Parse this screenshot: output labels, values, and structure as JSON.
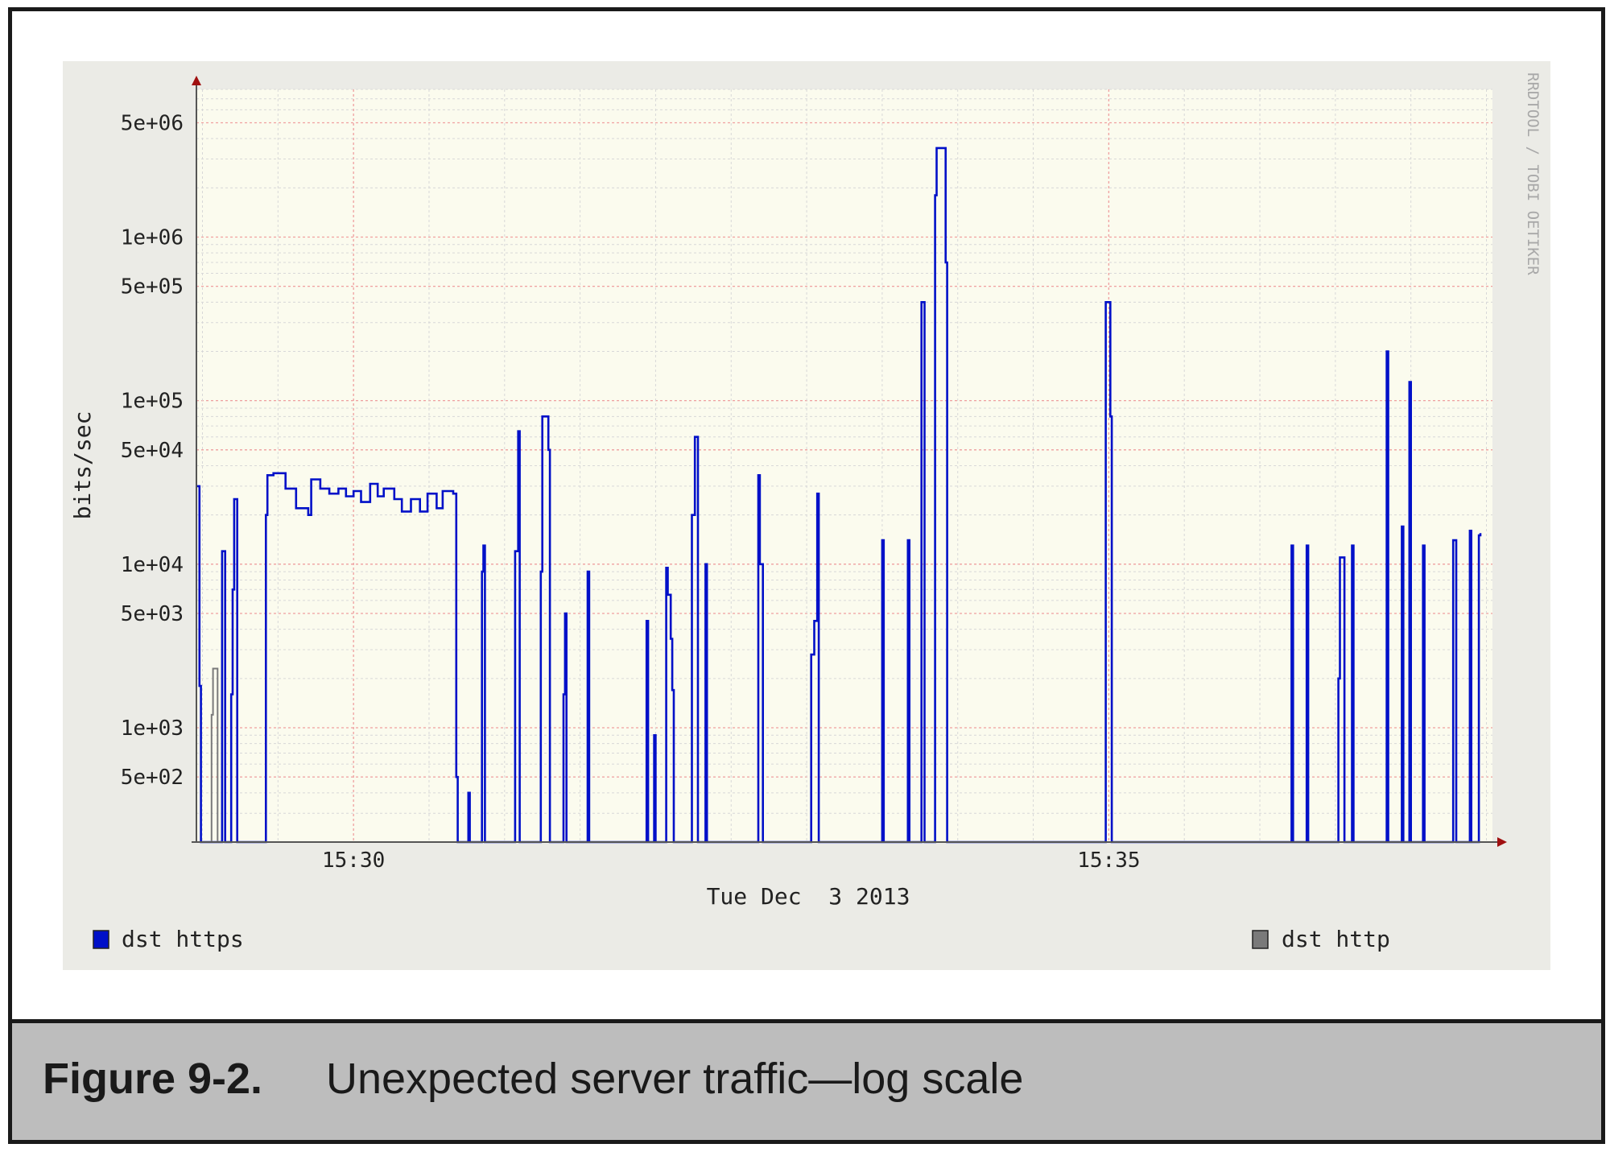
{
  "figure": {
    "label": "Figure 9-2.",
    "caption": "Unexpected server traffic—log scale"
  },
  "chart_data": {
    "type": "line",
    "scale": "log",
    "ylabel": "bits/sec",
    "xlabel": "Tue Dec  3 2013",
    "watermark": "RRDTOOL / TOBI OETIKER",
    "x_unit": "minutes past 15:00",
    "xlim": [
      28.96,
      37.54
    ],
    "ylim": [
      200,
      8000000
    ],
    "y_ticks": [
      {
        "value": 5000000,
        "label": "5e+06"
      },
      {
        "value": 1000000,
        "label": "1e+06"
      },
      {
        "value": 500000,
        "label": "5e+05"
      },
      {
        "value": 100000,
        "label": "1e+05"
      },
      {
        "value": 50000,
        "label": "5e+04"
      },
      {
        "value": 10000,
        "label": "1e+04"
      },
      {
        "value": 5000,
        "label": "5e+03"
      },
      {
        "value": 1000,
        "label": "1e+03"
      },
      {
        "value": 500,
        "label": "5e+02"
      }
    ],
    "x_ticks": [
      {
        "value": 30,
        "label": "15:30"
      },
      {
        "value": 35,
        "label": "15:35"
      }
    ],
    "grid": true,
    "legend_position": "bottom",
    "series": [
      {
        "name": "dst https",
        "color": "#0010c8",
        "points": [
          [
            28.96,
            30000
          ],
          [
            28.98,
            1800
          ],
          [
            28.99,
            200
          ],
          [
            29.12,
            200
          ],
          [
            29.13,
            12000
          ],
          [
            29.15,
            200
          ],
          [
            29.19,
            1600
          ],
          [
            29.2,
            7000
          ],
          [
            29.21,
            25000
          ],
          [
            29.23,
            200
          ],
          [
            29.41,
            200
          ],
          [
            29.42,
            20000
          ],
          [
            29.43,
            35000
          ],
          [
            29.47,
            36000
          ],
          [
            29.55,
            29000
          ],
          [
            29.62,
            22000
          ],
          [
            29.7,
            20000
          ],
          [
            29.72,
            33000
          ],
          [
            29.78,
            29000
          ],
          [
            29.84,
            27000
          ],
          [
            29.9,
            29000
          ],
          [
            29.95,
            26000
          ],
          [
            30.0,
            28000
          ],
          [
            30.05,
            24000
          ],
          [
            30.11,
            31000
          ],
          [
            30.16,
            26000
          ],
          [
            30.2,
            29000
          ],
          [
            30.27,
            25000
          ],
          [
            30.32,
            21000
          ],
          [
            30.38,
            25000
          ],
          [
            30.44,
            21000
          ],
          [
            30.49,
            27000
          ],
          [
            30.55,
            22000
          ],
          [
            30.59,
            28000
          ],
          [
            30.66,
            27000
          ],
          [
            30.68,
            500
          ],
          [
            30.69,
            200
          ],
          [
            30.75,
            200
          ],
          [
            30.76,
            400
          ],
          [
            30.77,
            200
          ],
          [
            30.84,
            200
          ],
          [
            30.85,
            9000
          ],
          [
            30.86,
            13000
          ],
          [
            30.87,
            200
          ],
          [
            31.06,
            200
          ],
          [
            31.07,
            12000
          ],
          [
            31.09,
            65000
          ],
          [
            31.1,
            200
          ],
          [
            31.23,
            200
          ],
          [
            31.24,
            9000
          ],
          [
            31.25,
            80000
          ],
          [
            31.29,
            50000
          ],
          [
            31.3,
            200
          ],
          [
            31.38,
            200
          ],
          [
            31.39,
            1600
          ],
          [
            31.4,
            5000
          ],
          [
            31.41,
            200
          ],
          [
            31.54,
            200
          ],
          [
            31.55,
            9000
          ],
          [
            31.56,
            200
          ],
          [
            31.93,
            200
          ],
          [
            31.94,
            4500
          ],
          [
            31.95,
            200
          ],
          [
            31.98,
            200
          ],
          [
            31.99,
            900
          ],
          [
            32.0,
            200
          ],
          [
            32.06,
            200
          ],
          [
            32.07,
            9500
          ],
          [
            32.08,
            6500
          ],
          [
            32.1,
            3500
          ],
          [
            32.11,
            1700
          ],
          [
            32.12,
            200
          ],
          [
            32.23,
            200
          ],
          [
            32.24,
            20000
          ],
          [
            32.26,
            60000
          ],
          [
            32.28,
            200
          ],
          [
            32.32,
            200
          ],
          [
            32.33,
            10000
          ],
          [
            32.34,
            200
          ],
          [
            32.67,
            200
          ],
          [
            32.68,
            35000
          ],
          [
            32.69,
            10000
          ],
          [
            32.71,
            200
          ],
          [
            33.02,
            200
          ],
          [
            33.03,
            2800
          ],
          [
            33.05,
            4500
          ],
          [
            33.07,
            27000
          ],
          [
            33.08,
            200
          ],
          [
            33.49,
            200
          ],
          [
            33.5,
            14000
          ],
          [
            33.51,
            200
          ],
          [
            33.66,
            200
          ],
          [
            33.67,
            14000
          ],
          [
            33.68,
            200
          ],
          [
            33.75,
            200
          ],
          [
            33.76,
            400000
          ],
          [
            33.78,
            200
          ],
          [
            33.84,
            200
          ],
          [
            33.85,
            1800000
          ],
          [
            33.86,
            3500000
          ],
          [
            33.92,
            700000
          ],
          [
            33.93,
            200
          ],
          [
            34.97,
            200
          ],
          [
            34.98,
            400000
          ],
          [
            35.01,
            80000
          ],
          [
            35.02,
            200
          ],
          [
            36.2,
            200
          ],
          [
            36.21,
            13000
          ],
          [
            36.22,
            200
          ],
          [
            36.3,
            200
          ],
          [
            36.31,
            13000
          ],
          [
            36.32,
            200
          ],
          [
            36.51,
            200
          ],
          [
            36.52,
            2000
          ],
          [
            36.53,
            11000
          ],
          [
            36.56,
            200
          ],
          [
            36.6,
            200
          ],
          [
            36.61,
            13000
          ],
          [
            36.62,
            200
          ],
          [
            36.83,
            200
          ],
          [
            36.84,
            200000
          ],
          [
            36.85,
            200
          ],
          [
            36.93,
            200
          ],
          [
            36.94,
            17000
          ],
          [
            36.95,
            200
          ],
          [
            36.98,
            200
          ],
          [
            36.99,
            130000
          ],
          [
            37.0,
            200
          ],
          [
            37.07,
            200
          ],
          [
            37.08,
            13000
          ],
          [
            37.09,
            200
          ],
          [
            37.27,
            200
          ],
          [
            37.28,
            14000
          ],
          [
            37.3,
            200
          ],
          [
            37.38,
            200
          ],
          [
            37.39,
            16000
          ],
          [
            37.4,
            200
          ],
          [
            37.44,
            200
          ],
          [
            37.45,
            15000
          ],
          [
            37.46,
            15500
          ]
        ]
      },
      {
        "name": "dst http",
        "color": "#7a7a7a",
        "points": [
          [
            29.05,
            200
          ],
          [
            29.06,
            1200
          ],
          [
            29.07,
            2300
          ],
          [
            29.09,
            2300
          ],
          [
            29.1,
            200
          ]
        ]
      }
    ]
  }
}
